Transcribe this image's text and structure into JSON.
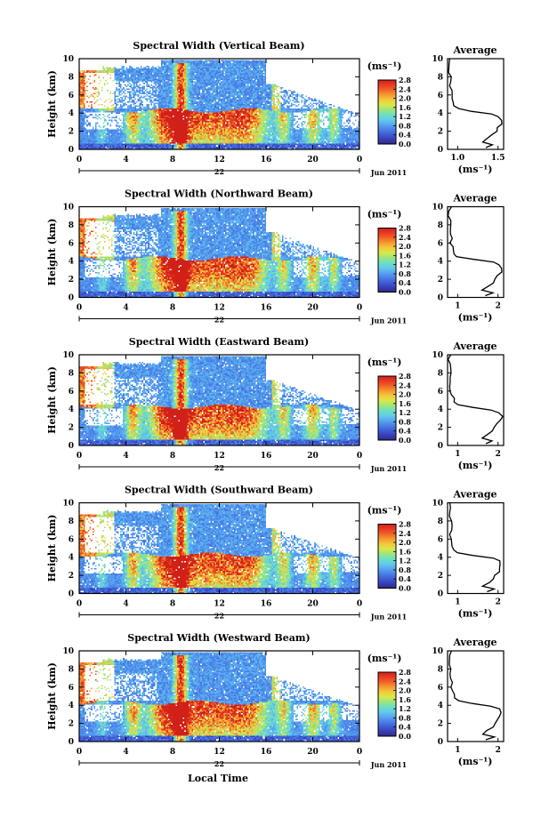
{
  "chart_data": {
    "type": "heatmap",
    "panels": [
      {
        "title": "Spectral Width (Vertical Beam)",
        "beam": "vertical",
        "avg_xticks": [
          "1.0",
          "1.5"
        ]
      },
      {
        "title": "Spectral Width (Northward Beam)",
        "beam": "northward",
        "avg_xticks": [
          "1",
          "2"
        ]
      },
      {
        "title": "Spectral Width (Eastward Beam)",
        "beam": "eastward",
        "avg_xticks": [
          "1",
          "2"
        ]
      },
      {
        "title": "Spectral Width (Southward Beam)",
        "beam": "southward",
        "avg_xticks": [
          "1",
          "2"
        ]
      },
      {
        "title": "Spectral Width (Westward Beam)",
        "beam": "westward",
        "avg_xticks": [
          "1",
          "2"
        ]
      }
    ],
    "ylabel": "Height (km)",
    "xlabel": "Local Time",
    "ylim": [
      0,
      10
    ],
    "yticks": [
      "0",
      "2",
      "4",
      "6",
      "8",
      "10"
    ],
    "xlim": [
      0,
      24
    ],
    "xticks": [
      "0",
      "4",
      "8",
      "12",
      "16",
      "20",
      "0"
    ],
    "date_day": "22",
    "date_label": "Jun 2011",
    "colorbar": {
      "unit_label": "(ms⁻¹)",
      "range": [
        0,
        2.8
      ],
      "tick_labels": [
        "2.8",
        "2.4",
        "2.0",
        "1.6",
        "1.2",
        "0.8",
        "0.4",
        "0.0"
      ],
      "colors": [
        "#2e2a7e",
        "#3a3fb8",
        "#3f5fd6",
        "#4a82e8",
        "#5aa8f0",
        "#62cde8",
        "#6ee0c0",
        "#9ee67a",
        "#d8e84a",
        "#f4c83a",
        "#f49a30",
        "#f06428",
        "#e83a24",
        "#d02018"
      ]
    },
    "average_panel": {
      "title": "Average",
      "xlabel": "(ms⁻¹)",
      "ylim": [
        0,
        10
      ],
      "yticks": [
        "0",
        "2",
        "4",
        "6",
        "8",
        "10"
      ],
      "profile_height_km": [
        0.2,
        0.5,
        0.8,
        1.2,
        1.6,
        2.0,
        2.4,
        2.8,
        3.2,
        3.6,
        3.9,
        4.2,
        4.5,
        4.8,
        5.2,
        5.6,
        6.0,
        6.5,
        7.0,
        7.5,
        8.0,
        8.5,
        9.0,
        9.5,
        10.0
      ],
      "profile_fraction_of_axis": [
        0.68,
        0.82,
        0.6,
        0.72,
        0.8,
        0.86,
        0.9,
        0.94,
        0.96,
        0.92,
        0.8,
        0.45,
        0.18,
        0.12,
        0.1,
        0.08,
        0.07,
        0.06,
        0.06,
        0.07,
        0.05,
        0.04,
        0.03,
        0.03,
        0.04
      ]
    }
  }
}
